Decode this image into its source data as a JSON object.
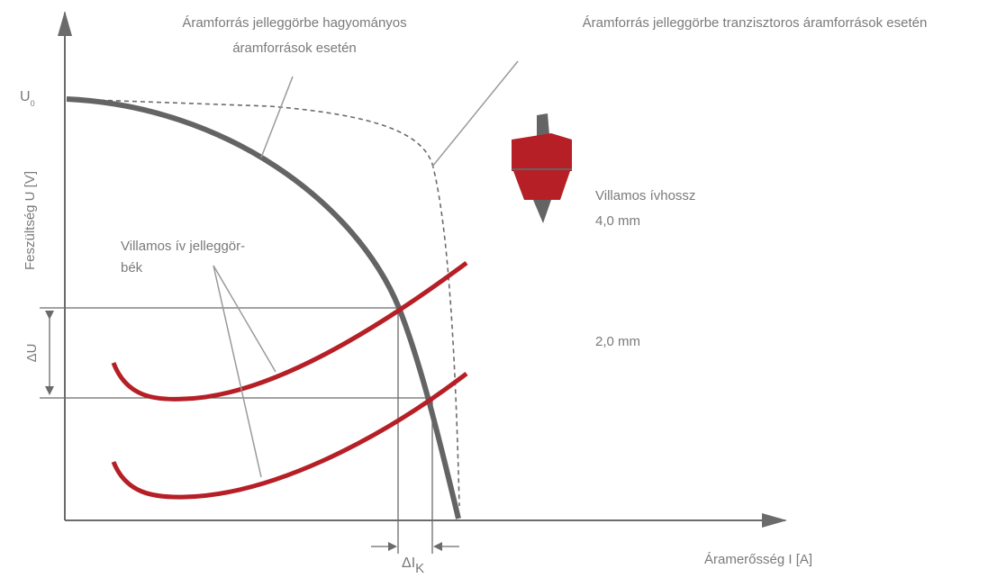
{
  "labels": {
    "classic_source": [
      "Áramforrás jelleggörbe hagyományos",
      "áramforrások esetén"
    ],
    "transistor_source": "Áramforrás jelleggörbe tranzisztoros áramforrások esetén",
    "u0": {
      "main": "U",
      "sub": "0"
    },
    "y_axis": "Feszültség U [V]",
    "delta_u": "ΔU",
    "arc_curves": [
      "Villamos ív jelleggör-",
      "bék"
    ],
    "arc_length": [
      "Villamos ívhossz",
      "4,0 mm"
    ],
    "arc_short": "2,0 mm",
    "x_axis": "Áramerősség I [A]",
    "delta_i": {
      "main": "ΔI",
      "sub": "K"
    }
  }
}
